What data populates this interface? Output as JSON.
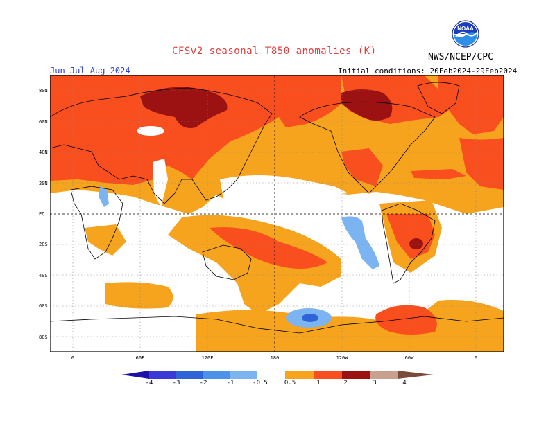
{
  "header": {
    "title": "CFSv2 seasonal T850 anomalies (K)",
    "agency": "NWS/NCEP/CPC",
    "season": "Jun-Jul-Aug 2024",
    "initial_conditions": "Initial conditions: 20Feb2024-29Feb2024",
    "logo_text": "NOAA"
  },
  "axes": {
    "lat_labels": [
      "80N",
      "60N",
      "40N",
      "20N",
      "EQ",
      "20S",
      "40S",
      "60S",
      "80S"
    ],
    "lon_labels": [
      "0",
      "60E",
      "120E",
      "180",
      "120W",
      "60W",
      "0"
    ]
  },
  "colorbar": {
    "labels": [
      "-4",
      "-3",
      "-2",
      "-1",
      "-0.5",
      "0.5",
      "1",
      "2",
      "3",
      "4"
    ],
    "colors": [
      "#1d12a8",
      "#3a3ad6",
      "#2f64d8",
      "#4b93ea",
      "#7cb4f2",
      "#ffffff",
      "#f6a31e",
      "#f94e1e",
      "#d02a10",
      "#9c0c0c",
      "#c8a090",
      "#7a4a3a"
    ]
  },
  "colors": {
    "anom_0_5_1": "#f6a31e",
    "anom_1_2": "#f94e1e",
    "anom_2_3": "#9c1212",
    "neg_0_5_1": "#7cb4f2",
    "neg_1_2": "#2f64d8"
  }
}
